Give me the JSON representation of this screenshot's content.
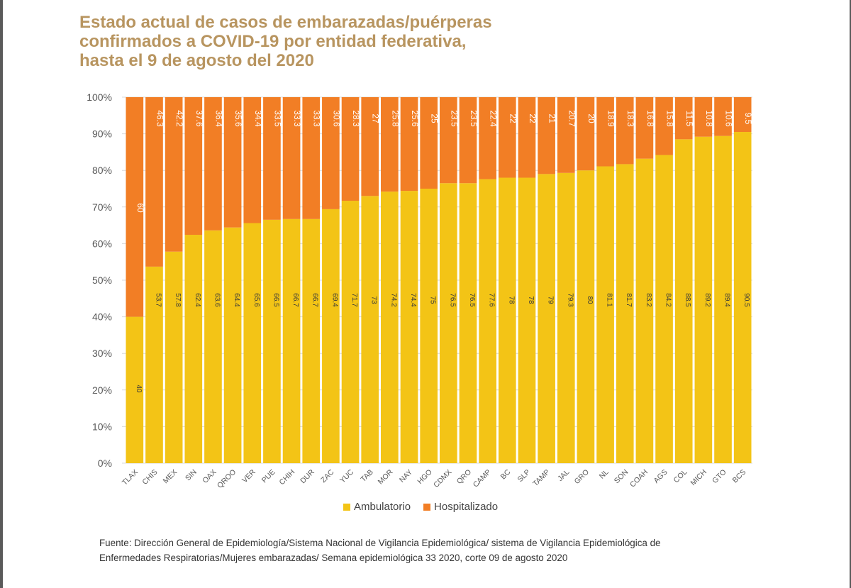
{
  "title_lines": [
    "Estado actual de casos de embarazadas/puérperas",
    "confirmados a COVID-19 por entidad federativa,",
    "hasta el 9 de agosto del 2020"
  ],
  "source_lines": [
    "Fuente: Dirección General de Epidemiología/Sistema Nacional de Vigilancia Epidemiológica/ sistema de Vigilancia Epidemiológica de",
    "Enfermedades Respiratorias/Mujeres embarazadas/ Semana epidemiológica 33  2020, corte  09 de agosto 2020"
  ],
  "colors": {
    "ambulatorio": "#f3c416",
    "hospitalizado": "#f27e25",
    "grid": "#d9d9d9",
    "axis_text": "#595959",
    "title": "#b89560"
  },
  "chart_data": {
    "type": "bar",
    "stacked": true,
    "title": "Estado actual de casos de embarazadas/puérperas confirmados a COVID-19 por entidad federativa, hasta el 9 de agosto del 2020",
    "categories": [
      "TLAX",
      "CHIS",
      "MEX",
      "SIN",
      "OAX",
      "QROO",
      "VER",
      "PUE",
      "CHIH",
      "DUR",
      "ZAC",
      "YUC",
      "TAB",
      "MOR",
      "NAY",
      "HGO",
      "CDMX",
      "QRO",
      "CAMP",
      "BC",
      "SLP",
      "TAMP",
      "JAL",
      "GRO",
      "NL",
      "SON",
      "COAH",
      "AGS",
      "COL",
      "MICH",
      "GTO",
      "BCS"
    ],
    "series": [
      {
        "name": "Ambulatorio",
        "values": [
          40,
          53.7,
          57.8,
          62.4,
          63.6,
          64.4,
          65.6,
          66.5,
          66.7,
          66.7,
          69.4,
          71.7,
          73,
          74.2,
          74.4,
          75,
          76.5,
          76.5,
          77.6,
          78,
          78,
          79,
          79.3,
          80,
          81.1,
          81.7,
          83.2,
          84.2,
          88.5,
          89.2,
          89.4,
          90.5
        ]
      },
      {
        "name": "Hospitalizado",
        "values": [
          60,
          46.3,
          42.2,
          37.6,
          36.4,
          35.6,
          34.4,
          33.5,
          33.3,
          33.3,
          30.6,
          28.3,
          27,
          25.8,
          25.6,
          25,
          23.5,
          23.5,
          22.4,
          22,
          22,
          21,
          20.7,
          20,
          18.9,
          18.3,
          16.8,
          15.8,
          11.5,
          10.8,
          10.6,
          9.5
        ]
      }
    ],
    "yticks": [
      "0%",
      "10%",
      "20%",
      "30%",
      "40%",
      "50%",
      "60%",
      "70%",
      "80%",
      "90%",
      "100%"
    ],
    "ylim": [
      0,
      100
    ],
    "xlabel": "",
    "ylabel": "",
    "legend_position": "bottom-center",
    "grid": true
  }
}
